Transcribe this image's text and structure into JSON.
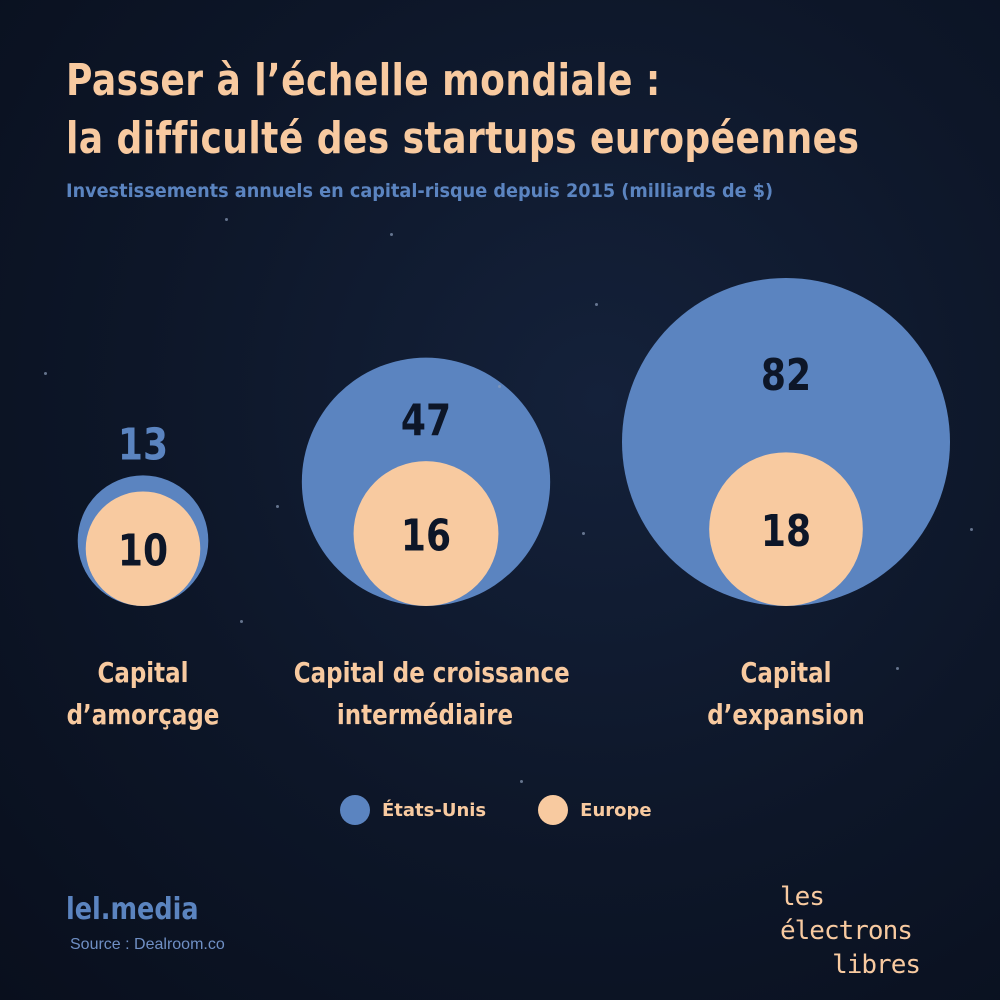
{
  "header": {
    "title_line1": "Passer à l’échelle mondiale :",
    "title_line2": "la difficulté des startups européennes",
    "subtitle": "Investissements annuels en capital-risque depuis 2015 (milliards de $)"
  },
  "chart_data": {
    "type": "bubble",
    "categories": [
      "Capital\nd’amorçage",
      "Capital de croissance\nintermédiaire",
      "Capital\nd’expansion"
    ],
    "series": [
      {
        "name": "États-Unis",
        "color": "#5b84c0",
        "values": [
          13,
          47,
          82
        ]
      },
      {
        "name": "Europe",
        "color": "#f8caa0",
        "values": [
          10,
          16,
          18
        ]
      }
    ],
    "legend_position": "bottom-center"
  },
  "labels": {
    "cat1_line1": "Capital",
    "cat1_line2": "d’amorçage",
    "cat2_line1": "Capital de croissance",
    "cat2_line2": "intermédiaire",
    "cat3_line1": "Capital",
    "cat3_line2": "d’expansion"
  },
  "legend": {
    "us": "États-Unis",
    "eu": "Europe"
  },
  "footer": {
    "brand": "lel.media",
    "source": "Source : Dealroom.co",
    "logo_line1": "les électrons",
    "logo_line2": "libres"
  },
  "colors": {
    "background": "#0d1628",
    "us": "#5b84c0",
    "europe": "#f8caa0",
    "value_text": "#0d1628"
  }
}
